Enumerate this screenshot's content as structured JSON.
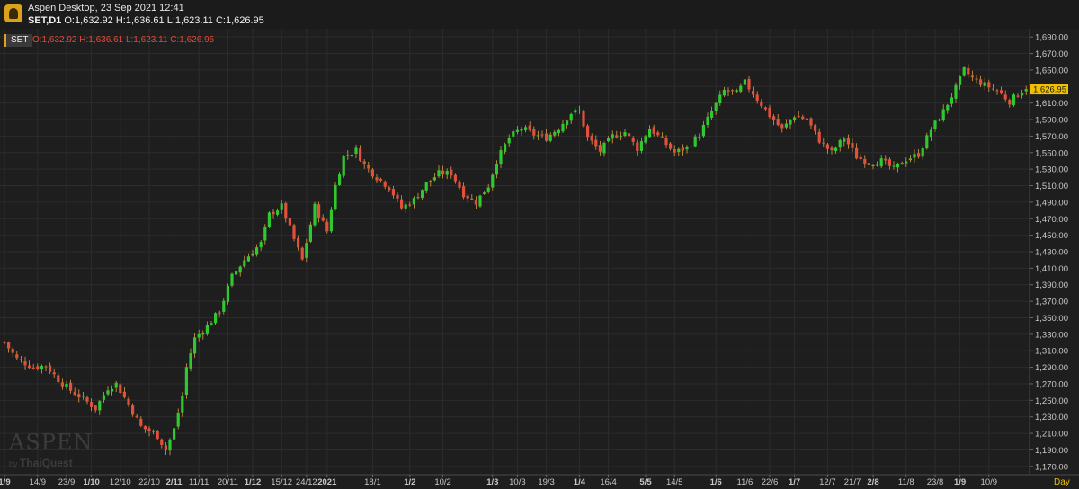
{
  "window": {
    "title": "Aspen Desktop, 23 Sep 2021 12:41",
    "logo_icon": "aspen-logo-icon"
  },
  "header": {
    "symbol_tf": "SET,D1",
    "ohlc": "O:1,632.92 H:1,636.61 L:1,623.11 C:1,626.95"
  },
  "legend": {
    "symbol": "SET",
    "ohlc": "O:1,632.92 H:1,636.61 L:1,623.11 C:1,626.95"
  },
  "watermark": {
    "brand": "ASPEN",
    "by": "by",
    "company": "ThaiQuest"
  },
  "last_price_label": "1,626.95",
  "timeframe_label": "Day",
  "colors": {
    "up": "#2fc82f",
    "down": "#e0503c",
    "grid": "#2c2c2c",
    "axis_text": "#c8c8c8",
    "price_tag": "#f0c000"
  },
  "chart_data": {
    "type": "candlestick",
    "ylim": [
      1160,
      1700
    ],
    "y_ticks": [
      "1,170.00",
      "1,190.00",
      "1,210.00",
      "1,230.00",
      "1,250.00",
      "1,270.00",
      "1,290.00",
      "1,310.00",
      "1,330.00",
      "1,350.00",
      "1,370.00",
      "1,390.00",
      "1,410.00",
      "1,430.00",
      "1,450.00",
      "1,470.00",
      "1,490.00",
      "1,510.00",
      "1,530.00",
      "1,550.00",
      "1,570.00",
      "1,590.00",
      "1,610.00",
      "1,630.00",
      "1,650.00",
      "1,670.00",
      "1,690.00"
    ],
    "x_ticks": [
      {
        "label": "1/9",
        "index": 0,
        "bold": true
      },
      {
        "label": "14/9",
        "index": 8,
        "bold": false
      },
      {
        "label": "23/9",
        "index": 15,
        "bold": false
      },
      {
        "label": "1/10",
        "index": 21,
        "bold": true
      },
      {
        "label": "12/10",
        "index": 28,
        "bold": false
      },
      {
        "label": "22/10",
        "index": 35,
        "bold": false
      },
      {
        "label": "2/11",
        "index": 41,
        "bold": true
      },
      {
        "label": "11/11",
        "index": 47,
        "bold": false
      },
      {
        "label": "20/11",
        "index": 54,
        "bold": false
      },
      {
        "label": "1/12",
        "index": 60,
        "bold": true
      },
      {
        "label": "15/12",
        "index": 67,
        "bold": false
      },
      {
        "label": "24/12",
        "index": 73,
        "bold": false
      },
      {
        "label": "2021",
        "index": 78,
        "bold": true
      },
      {
        "label": "18/1",
        "index": 89,
        "bold": false
      },
      {
        "label": "1/2",
        "index": 98,
        "bold": true
      },
      {
        "label": "10/2",
        "index": 106,
        "bold": false
      },
      {
        "label": "1/3",
        "index": 118,
        "bold": true
      },
      {
        "label": "10/3",
        "index": 124,
        "bold": false
      },
      {
        "label": "19/3",
        "index": 131,
        "bold": false
      },
      {
        "label": "1/4",
        "index": 139,
        "bold": true
      },
      {
        "label": "16/4",
        "index": 146,
        "bold": false
      },
      {
        "label": "5/5",
        "index": 155,
        "bold": true
      },
      {
        "label": "14/5",
        "index": 162,
        "bold": false
      },
      {
        "label": "1/6",
        "index": 172,
        "bold": true
      },
      {
        "label": "11/6",
        "index": 179,
        "bold": false
      },
      {
        "label": "22/6",
        "index": 185,
        "bold": false
      },
      {
        "label": "1/7",
        "index": 191,
        "bold": true
      },
      {
        "label": "12/7",
        "index": 199,
        "bold": false
      },
      {
        "label": "21/7",
        "index": 205,
        "bold": false
      },
      {
        "label": "2/8",
        "index": 210,
        "bold": true
      },
      {
        "label": "11/8",
        "index": 218,
        "bold": false
      },
      {
        "label": "23/8",
        "index": 225,
        "bold": false
      },
      {
        "label": "1/9",
        "index": 231,
        "bold": true
      },
      {
        "label": "10/9",
        "index": 238,
        "bold": false
      }
    ],
    "bar_count": 248,
    "anchors": [
      [
        0,
        1320
      ],
      [
        3,
        1300
      ],
      [
        7,
        1290
      ],
      [
        10,
        1292
      ],
      [
        13,
        1275
      ],
      [
        16,
        1262
      ],
      [
        19,
        1252
      ],
      [
        22,
        1240
      ],
      [
        25,
        1265
      ],
      [
        27,
        1270
      ],
      [
        30,
        1245
      ],
      [
        33,
        1218
      ],
      [
        37,
        1207
      ],
      [
        39,
        1190
      ],
      [
        41,
        1215
      ],
      [
        43,
        1255
      ],
      [
        44,
        1290
      ],
      [
        46,
        1325
      ],
      [
        49,
        1340
      ],
      [
        52,
        1358
      ],
      [
        55,
        1400
      ],
      [
        58,
        1420
      ],
      [
        62,
        1440
      ],
      [
        64,
        1475
      ],
      [
        67,
        1485
      ],
      [
        70,
        1445
      ],
      [
        72,
        1420
      ],
      [
        75,
        1485
      ],
      [
        78,
        1455
      ],
      [
        80,
        1510
      ],
      [
        82,
        1545
      ],
      [
        85,
        1553
      ],
      [
        87,
        1535
      ],
      [
        90,
        1520
      ],
      [
        93,
        1508
      ],
      [
        96,
        1483
      ],
      [
        99,
        1493
      ],
      [
        102,
        1512
      ],
      [
        105,
        1525
      ],
      [
        108,
        1525
      ],
      [
        111,
        1500
      ],
      [
        114,
        1490
      ],
      [
        117,
        1510
      ],
      [
        119,
        1540
      ],
      [
        122,
        1568
      ],
      [
        125,
        1580
      ],
      [
        128,
        1572
      ],
      [
        131,
        1568
      ],
      [
        134,
        1580
      ],
      [
        137,
        1598
      ],
      [
        139,
        1600
      ],
      [
        141,
        1568
      ],
      [
        144,
        1552
      ],
      [
        147,
        1570
      ],
      [
        150,
        1575
      ],
      [
        153,
        1555
      ],
      [
        156,
        1580
      ],
      [
        159,
        1565
      ],
      [
        162,
        1550
      ],
      [
        165,
        1556
      ],
      [
        168,
        1572
      ],
      [
        171,
        1600
      ],
      [
        174,
        1625
      ],
      [
        177,
        1622
      ],
      [
        179,
        1635
      ],
      [
        182,
        1615
      ],
      [
        185,
        1595
      ],
      [
        188,
        1578
      ],
      [
        191,
        1595
      ],
      [
        194,
        1590
      ],
      [
        197,
        1565
      ],
      [
        200,
        1550
      ],
      [
        203,
        1568
      ],
      [
        206,
        1545
      ],
      [
        209,
        1537
      ],
      [
        212,
        1540
      ],
      [
        215,
        1530
      ],
      [
        218,
        1542
      ],
      [
        221,
        1548
      ],
      [
        224,
        1578
      ],
      [
        227,
        1600
      ],
      [
        230,
        1628
      ],
      [
        232,
        1650
      ],
      [
        234,
        1640
      ],
      [
        237,
        1632
      ],
      [
        240,
        1625
      ],
      [
        243,
        1612
      ],
      [
        246,
        1625
      ],
      [
        247,
        1627
      ]
    ]
  }
}
